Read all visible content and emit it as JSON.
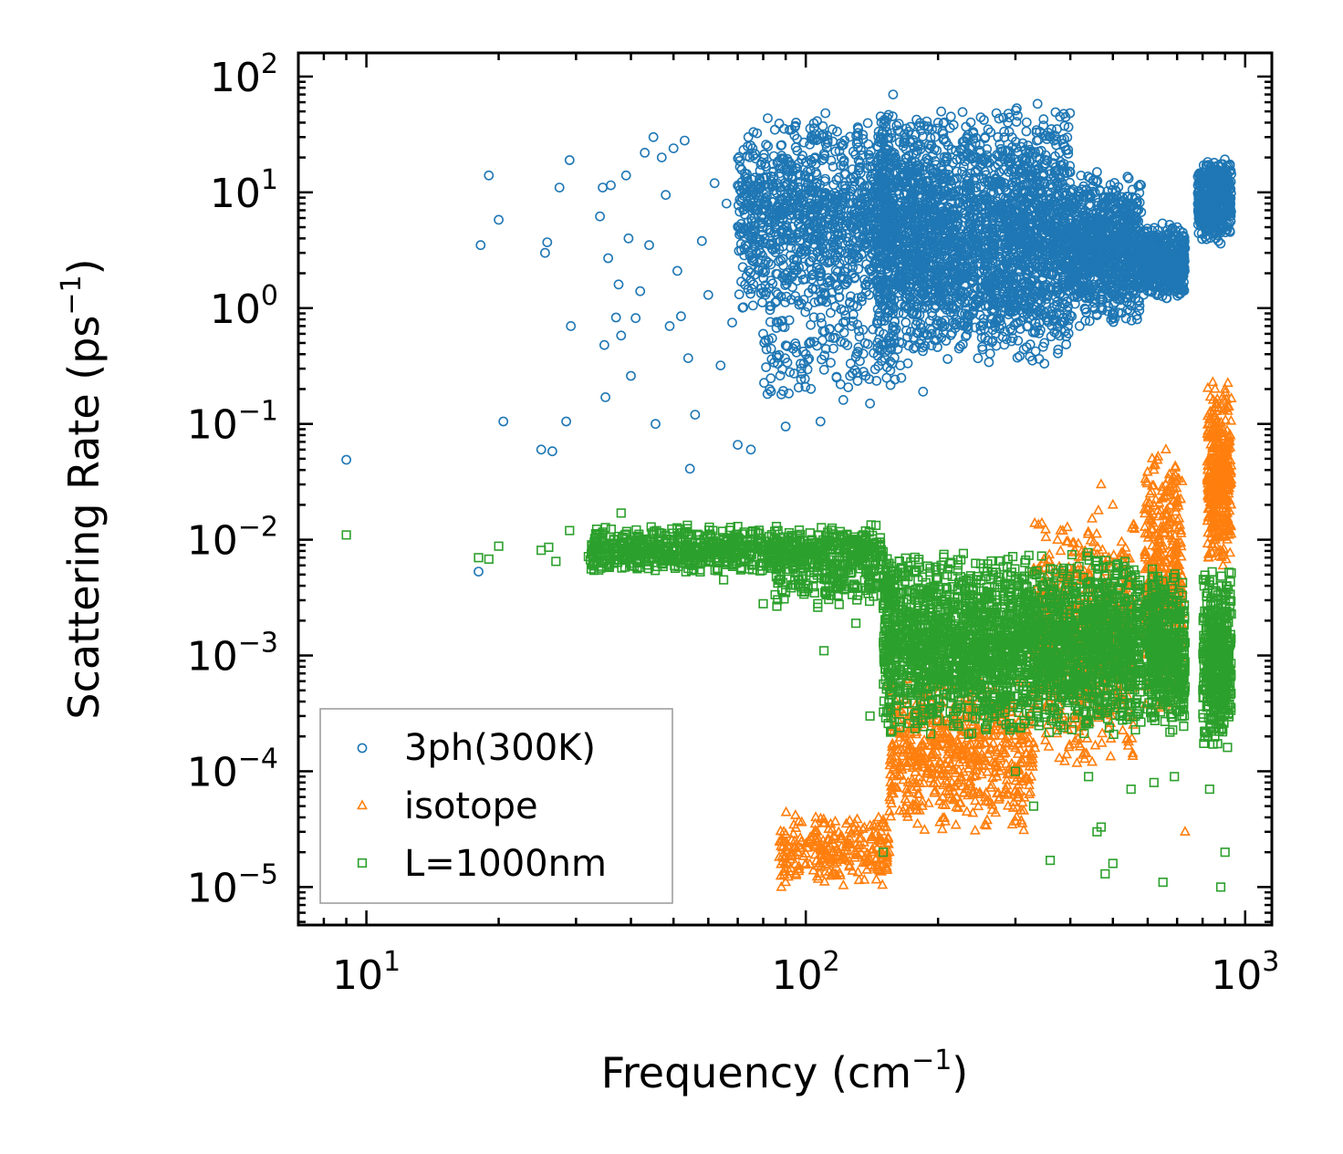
{
  "chart_data": {
    "type": "scatter",
    "title": "",
    "xlabel": "Frequency (cm",
    "xlabel_sup": "−1",
    "xlabel_tail": ")",
    "ylabel": "Scattering Rate (ps",
    "ylabel_sup": "−1",
    "ylabel_tail": ")",
    "xscale": "log",
    "yscale": "log",
    "xlim": [
      7,
      1150
    ],
    "ylim": [
      4.7e-06,
      160
    ],
    "x_ticks": [
      {
        "value": 10,
        "base": "10",
        "exp": "1"
      },
      {
        "value": 100,
        "base": "10",
        "exp": "2"
      },
      {
        "value": 1000,
        "base": "10",
        "exp": "3"
      }
    ],
    "y_ticks": [
      {
        "value": 100,
        "base": "10",
        "exp": "2"
      },
      {
        "value": 10,
        "base": "10",
        "exp": "1"
      },
      {
        "value": 1,
        "base": "10",
        "exp": "0"
      },
      {
        "value": 0.1,
        "base": "10",
        "exp": "−1"
      },
      {
        "value": 0.01,
        "base": "10",
        "exp": "−2"
      },
      {
        "value": 0.001,
        "base": "10",
        "exp": "−3"
      },
      {
        "value": 0.0001,
        "base": "10",
        "exp": "−4"
      },
      {
        "value": 1e-05,
        "base": "10",
        "exp": "−5"
      }
    ],
    "legend_position": "lower-left",
    "series": [
      {
        "name": "3ph(300K)",
        "color": "#1f77b4",
        "marker": "circle",
        "points": [
          [
            9.0,
            0.049
          ],
          [
            18.0,
            0.0053
          ],
          [
            18.2,
            3.5
          ],
          [
            19.0,
            14
          ],
          [
            20.0,
            5.8
          ],
          [
            20.5,
            0.105
          ],
          [
            25.0,
            0.06
          ],
          [
            25.5,
            3.0
          ],
          [
            25.8,
            3.7
          ],
          [
            26.5,
            0.058
          ],
          [
            27.5,
            11
          ],
          [
            28.5,
            0.105
          ],
          [
            29.0,
            19
          ],
          [
            29.2,
            0.7
          ],
          [
            34.0,
            6.2
          ],
          [
            34.5,
            11
          ],
          [
            34.8,
            0.48
          ],
          [
            35.0,
            0.17
          ],
          [
            35.5,
            2.7
          ],
          [
            36.0,
            11.5
          ],
          [
            37.0,
            0.83
          ],
          [
            37.5,
            1.6
          ],
          [
            38.0,
            0.58
          ],
          [
            39.0,
            14
          ],
          [
            39.5,
            4.0
          ],
          [
            40.0,
            0.26
          ],
          [
            41.0,
            0.82
          ],
          [
            42.0,
            1.4
          ],
          [
            43.0,
            22
          ],
          [
            44.0,
            3.5
          ],
          [
            45.0,
            30
          ],
          [
            45.5,
            0.1
          ],
          [
            47.0,
            20
          ],
          [
            48.0,
            9.5
          ],
          [
            49.0,
            0.7
          ],
          [
            50.0,
            24
          ],
          [
            51.0,
            2.1
          ],
          [
            52.0,
            0.85
          ],
          [
            53.0,
            28
          ],
          [
            54.0,
            0.37
          ],
          [
            54.5,
            0.041
          ],
          [
            56.0,
            0.12
          ],
          [
            58.0,
            3.8
          ],
          [
            60.0,
            1.3
          ],
          [
            62.0,
            12
          ],
          [
            64.0,
            0.32
          ],
          [
            66.0,
            8
          ],
          [
            68.0,
            0.75
          ],
          [
            70.0,
            0.066
          ],
          [
            72.0,
            4.5
          ],
          [
            74.0,
            30
          ],
          [
            75.0,
            0.06
          ],
          [
            76.0,
            1.6
          ],
          [
            78.0,
            12
          ],
          [
            80.0,
            0.6
          ],
          [
            82.0,
            25
          ],
          [
            85.0,
            5
          ],
          [
            88.0,
            0.18
          ],
          [
            90.0,
            0.095
          ],
          [
            92.0,
            0.28
          ],
          [
            95.0,
            40
          ],
          [
            98.0,
            3.2
          ],
          [
            100.0,
            0.4
          ],
          [
            105.0,
            20
          ],
          [
            108.0,
            0.105
          ],
          [
            110.0,
            1.5
          ],
          [
            115.0,
            35
          ],
          [
            120.0,
            0.22
          ],
          [
            125.0,
            8
          ],
          [
            130.0,
            0.38
          ],
          [
            135.0,
            0.65
          ],
          [
            140.0,
            0.15
          ],
          [
            148.0,
            30
          ],
          [
            158.0,
            70
          ],
          [
            165.0,
            0.25
          ],
          [
            175.0,
            2.0
          ],
          [
            185.0,
            0.19
          ],
          [
            200.0,
            40
          ],
          [
            230.0,
            25
          ],
          [
            260.0,
            35
          ],
          [
            290.0,
            15
          ],
          [
            320.0,
            0.7
          ],
          [
            350.0,
            12
          ],
          [
            400.0,
            10
          ],
          [
            420.0,
            0.7
          ],
          [
            460.0,
            15
          ],
          [
            500.0,
            9
          ],
          [
            540.0,
            3
          ],
          [
            600.0,
            3
          ],
          [
            640.0,
            2
          ],
          [
            680.0,
            4
          ],
          [
            700.0,
            5
          ],
          [
            800.0,
            15
          ],
          [
            850.0,
            18
          ],
          [
            880.0,
            6
          ]
        ],
        "bands": [
          {
            "x": [
              70,
              160
            ],
            "y": [
              0.8,
              50
            ],
            "n": 1100
          },
          {
            "x": [
              80,
              160
            ],
            "y": [
              0.15,
              1.5
            ],
            "n": 160
          },
          {
            "x": [
              145,
              400
            ],
            "y": [
              0.3,
              60
            ],
            "n": 2600
          },
          {
            "x": [
              400,
              580
            ],
            "y": [
              0.7,
              15
            ],
            "n": 900
          },
          {
            "x": [
              580,
              730
            ],
            "y": [
              1.2,
              5.5
            ],
            "n": 480
          },
          {
            "x": [
              780,
              930
            ],
            "y": [
              3.5,
              20
            ],
            "n": 500
          }
        ]
      },
      {
        "name": "isotope",
        "color": "#ff7f0e",
        "marker": "triangle",
        "points": [
          [
            88,
            1e-05
          ],
          [
            90,
            1.1e-05
          ],
          [
            95,
            1.3e-05
          ],
          [
            100,
            1.6e-05
          ],
          [
            105,
            1.9e-05
          ],
          [
            110,
            2.1e-05
          ],
          [
            120,
            2.6e-05
          ],
          [
            130,
            3e-05
          ],
          [
            140,
            3.4e-05
          ],
          [
            150,
            3.8e-05
          ],
          [
            155,
            4.5e-05
          ],
          [
            170,
            0.00015
          ],
          [
            190,
            0.0001
          ],
          [
            210,
            0.00045
          ],
          [
            240,
            0.00035
          ],
          [
            280,
            0.0004
          ],
          [
            300,
            0.0006
          ],
          [
            350,
            0.0008
          ],
          [
            380,
            0.012
          ],
          [
            410,
            0.008
          ],
          [
            440,
            0.005
          ],
          [
            470,
            0.03
          ],
          [
            500,
            0.02
          ],
          [
            560,
            0.004
          ],
          [
            620,
            0.04
          ],
          [
            660,
            0.06
          ],
          [
            700,
            0.006
          ],
          [
            730,
            3e-05
          ],
          [
            860,
            0.15
          ],
          [
            900,
            0.2
          ],
          [
            910,
            0.01
          ]
        ],
        "bands": [
          {
            "x": [
              87,
              155
            ],
            "y": [
              1e-05,
              4.5e-05
            ],
            "n": 260
          },
          {
            "x": [
              155,
              330
            ],
            "y": [
              2.5e-05,
              0.0008
            ],
            "n": 650
          },
          {
            "x": [
              330,
              560
            ],
            "y": [
              0.0001,
              0.02
            ],
            "n": 650
          },
          {
            "x": [
              590,
              720
            ],
            "y": [
              0.0003,
              0.07
            ],
            "n": 380
          },
          {
            "x": [
              820,
              930
            ],
            "y": [
              0.005,
              0.25
            ],
            "n": 380
          }
        ]
      },
      {
        "name": "L=1000nm",
        "color": "#2ca02c",
        "marker": "square",
        "points": [
          [
            9,
            0.011
          ],
          [
            18,
            0.007
          ],
          [
            19,
            0.0068
          ],
          [
            20,
            0.0088
          ],
          [
            25,
            0.0081
          ],
          [
            26,
            0.0086
          ],
          [
            27,
            0.0065
          ],
          [
            29,
            0.012
          ],
          [
            33,
            0.0095
          ],
          [
            34,
            0.0078
          ],
          [
            38,
            0.017
          ],
          [
            40,
            0.0085
          ],
          [
            45,
            0.011
          ],
          [
            50,
            0.0082
          ],
          [
            55,
            0.006
          ],
          [
            60,
            0.0095
          ],
          [
            65,
            0.0045
          ],
          [
            70,
            0.013
          ],
          [
            80,
            0.0028
          ],
          [
            90,
            0.0035
          ],
          [
            100,
            0.0042
          ],
          [
            110,
            0.0011
          ],
          [
            130,
            0.0019
          ],
          [
            140,
            0.0003
          ],
          [
            150,
            2e-05
          ],
          [
            170,
            0.0005
          ],
          [
            210,
            0.0008
          ],
          [
            300,
            0.0001
          ],
          [
            330,
            5e-05
          ],
          [
            360,
            1.7e-05
          ],
          [
            400,
            0.0009
          ],
          [
            440,
            9e-05
          ],
          [
            460,
            3e-05
          ],
          [
            470,
            3.3e-05
          ],
          [
            480,
            1.3e-05
          ],
          [
            500,
            1.6e-05
          ],
          [
            550,
            7e-05
          ],
          [
            620,
            8e-05
          ],
          [
            650,
            1.1e-05
          ],
          [
            690,
            9e-05
          ],
          [
            830,
            7e-05
          ],
          [
            880,
            1e-05
          ],
          [
            900,
            2e-05
          ]
        ],
        "bands": [
          {
            "x": [
              32,
              150
            ],
            "y": [
              0.005,
              0.0135
            ],
            "n": 900
          },
          {
            "x": [
              85,
              160
            ],
            "y": [
              0.0025,
              0.008
            ],
            "n": 180
          },
          {
            "x": [
              150,
              580
            ],
            "y": [
              0.0002,
              0.0085
            ],
            "n": 2600
          },
          {
            "x": [
              600,
              730
            ],
            "y": [
              0.0002,
              0.006
            ],
            "n": 480
          },
          {
            "x": [
              800,
              930
            ],
            "y": [
              0.00015,
              0.006
            ],
            "n": 450
          }
        ]
      }
    ]
  }
}
